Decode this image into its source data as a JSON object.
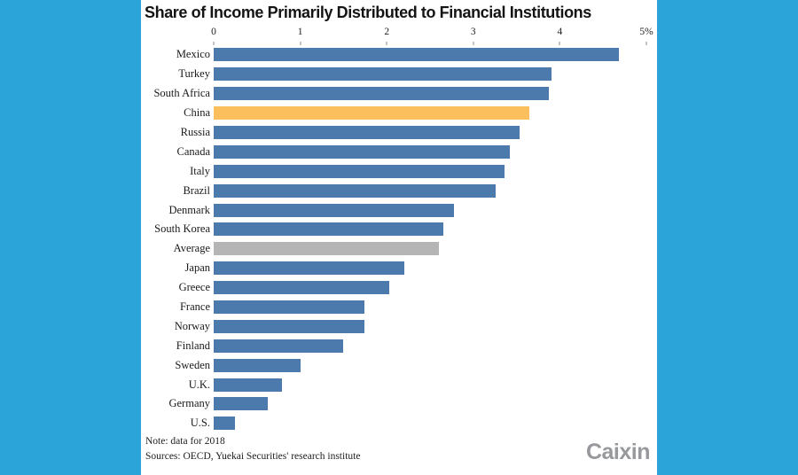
{
  "frame": {
    "background_color": "#2ba4d9",
    "panel_color": "#ffffff"
  },
  "chart_data": {
    "type": "bar",
    "orientation": "horizontal",
    "title": "Share of Income Primarily Distributed to Financial Institutions",
    "categories": [
      "Mexico",
      "Turkey",
      "South Africa",
      "China",
      "Russia",
      "Canada",
      "Italy",
      "Brazil",
      "Denmark",
      "South Korea",
      "Average",
      "Japan",
      "Greece",
      "France",
      "Norway",
      "Finland",
      "Sweden",
      "U.K.",
      "Germany",
      "U.S."
    ],
    "values": [
      4.68,
      3.9,
      3.87,
      3.65,
      3.53,
      3.42,
      3.36,
      3.26,
      2.78,
      2.65,
      2.6,
      2.2,
      2.03,
      1.74,
      1.74,
      1.5,
      1.0,
      0.79,
      0.62,
      0.25
    ],
    "xlim": [
      0,
      5
    ],
    "x_ticks": [
      "0",
      "1",
      "2",
      "3",
      "4",
      "5%"
    ],
    "axis_position": "top",
    "grid": false,
    "legend": "none",
    "bar_colors": {
      "default": "#4d7aad",
      "highlight": "#fbbf5d",
      "average": "#b5b5b5"
    },
    "highlight_category": "China",
    "average_category": "Average"
  },
  "footer": {
    "note": "Note: data for 2018",
    "sources": "Sources: OECD, Yuekai Securities' research institute"
  },
  "branding": {
    "logo_text": "Caixin"
  }
}
